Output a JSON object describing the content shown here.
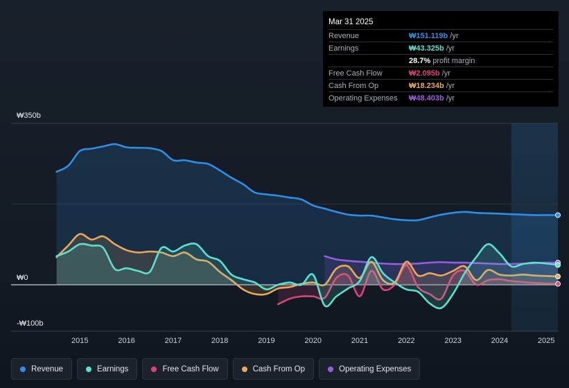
{
  "chart_data": {
    "type": "line",
    "currency_axis": {
      "ticks": [
        {
          "value": 350,
          "label": "₩350b"
        },
        {
          "value": 0,
          "label": "₩0"
        },
        {
          "value": -100,
          "label": "-₩100b"
        }
      ],
      "ylim": [
        -100,
        350
      ]
    },
    "xlim": [
      2014.0,
      2025.25
    ],
    "x_ticks": [
      "2015",
      "2016",
      "2017",
      "2018",
      "2019",
      "2020",
      "2021",
      "2022",
      "2023",
      "2024",
      "2025"
    ],
    "forecast_from": 2024.25,
    "series": [
      {
        "key": "revenue",
        "name": "Revenue",
        "color": "#2f8ee5",
        "fill": true,
        "points": [
          [
            2014.5,
            245
          ],
          [
            2014.75,
            258
          ],
          [
            2015.0,
            290
          ],
          [
            2015.25,
            295
          ],
          [
            2015.5,
            300
          ],
          [
            2015.75,
            305
          ],
          [
            2016.0,
            298
          ],
          [
            2016.25,
            297
          ],
          [
            2016.5,
            296
          ],
          [
            2016.75,
            290
          ],
          [
            2017.0,
            270
          ],
          [
            2017.25,
            270
          ],
          [
            2017.5,
            265
          ],
          [
            2017.75,
            262
          ],
          [
            2018.0,
            248
          ],
          [
            2018.25,
            232
          ],
          [
            2018.5,
            218
          ],
          [
            2018.75,
            200
          ],
          [
            2019.0,
            196
          ],
          [
            2019.25,
            193
          ],
          [
            2019.5,
            189
          ],
          [
            2019.75,
            185
          ],
          [
            2020.0,
            172
          ],
          [
            2020.25,
            165
          ],
          [
            2020.5,
            158
          ],
          [
            2020.75,
            152
          ],
          [
            2021.0,
            150
          ],
          [
            2021.25,
            150
          ],
          [
            2021.5,
            146
          ],
          [
            2021.75,
            142
          ],
          [
            2022.0,
            140
          ],
          [
            2022.25,
            140
          ],
          [
            2022.5,
            146
          ],
          [
            2022.75,
            152
          ],
          [
            2023.0,
            156
          ],
          [
            2023.25,
            158
          ],
          [
            2023.5,
            156
          ],
          [
            2023.75,
            155
          ],
          [
            2024.0,
            154
          ],
          [
            2024.25,
            153
          ],
          [
            2024.5,
            152
          ],
          [
            2024.75,
            151
          ],
          [
            2025.0,
            151
          ],
          [
            2025.25,
            151
          ]
        ]
      },
      {
        "key": "earnings",
        "name": "Earnings",
        "color": "#5fe0cf",
        "fill": true,
        "points": [
          [
            2014.5,
            62
          ],
          [
            2014.75,
            72
          ],
          [
            2015.0,
            88
          ],
          [
            2015.25,
            85
          ],
          [
            2015.5,
            80
          ],
          [
            2015.75,
            34
          ],
          [
            2016.0,
            36
          ],
          [
            2016.25,
            30
          ],
          [
            2016.5,
            28
          ],
          [
            2016.75,
            80
          ],
          [
            2017.0,
            72
          ],
          [
            2017.25,
            85
          ],
          [
            2017.5,
            88
          ],
          [
            2017.75,
            62
          ],
          [
            2018.0,
            52
          ],
          [
            2018.25,
            22
          ],
          [
            2018.5,
            12
          ],
          [
            2018.75,
            5
          ],
          [
            2019.0,
            -10
          ],
          [
            2019.25,
            0
          ],
          [
            2019.5,
            5
          ],
          [
            2019.75,
            0
          ],
          [
            2020.0,
            22
          ],
          [
            2020.25,
            -45
          ],
          [
            2020.5,
            -25
          ],
          [
            2020.75,
            -8
          ],
          [
            2021.0,
            8
          ],
          [
            2021.25,
            60
          ],
          [
            2021.5,
            25
          ],
          [
            2021.75,
            5
          ],
          [
            2022.0,
            -10
          ],
          [
            2022.25,
            -15
          ],
          [
            2022.5,
            -40
          ],
          [
            2022.75,
            -50
          ],
          [
            2023.0,
            -20
          ],
          [
            2023.25,
            25
          ],
          [
            2023.5,
            60
          ],
          [
            2023.75,
            88
          ],
          [
            2024.0,
            68
          ],
          [
            2024.25,
            40
          ],
          [
            2024.5,
            45
          ],
          [
            2024.75,
            48
          ],
          [
            2025.0,
            46
          ],
          [
            2025.25,
            43
          ]
        ]
      },
      {
        "key": "fcf",
        "name": "Free Cash Flow",
        "color": "#d8457a",
        "fill": true,
        "points": [
          [
            2019.25,
            -42
          ],
          [
            2019.5,
            -30
          ],
          [
            2019.75,
            -25
          ],
          [
            2020.0,
            -25
          ],
          [
            2020.25,
            -28
          ],
          [
            2020.5,
            15
          ],
          [
            2020.75,
            20
          ],
          [
            2021.0,
            -25
          ],
          [
            2021.25,
            30
          ],
          [
            2021.5,
            -10
          ],
          [
            2021.75,
            0
          ],
          [
            2022.0,
            42
          ],
          [
            2022.25,
            -5
          ],
          [
            2022.5,
            -20
          ],
          [
            2022.75,
            -30
          ],
          [
            2023.0,
            20
          ],
          [
            2023.25,
            30
          ],
          [
            2023.5,
            0
          ],
          [
            2023.75,
            10
          ],
          [
            2024.0,
            12
          ],
          [
            2024.25,
            8
          ],
          [
            2024.5,
            6
          ],
          [
            2024.75,
            4
          ],
          [
            2025.0,
            3
          ],
          [
            2025.25,
            2
          ]
        ]
      },
      {
        "key": "cfo",
        "name": "Cash From Op",
        "color": "#e8a95a",
        "fill": true,
        "points": [
          [
            2014.5,
            60
          ],
          [
            2014.75,
            85
          ],
          [
            2015.0,
            110
          ],
          [
            2015.25,
            98
          ],
          [
            2015.5,
            105
          ],
          [
            2015.75,
            88
          ],
          [
            2016.0,
            75
          ],
          [
            2016.25,
            70
          ],
          [
            2016.5,
            72
          ],
          [
            2016.75,
            70
          ],
          [
            2017.0,
            62
          ],
          [
            2017.25,
            70
          ],
          [
            2017.5,
            55
          ],
          [
            2017.75,
            50
          ],
          [
            2018.0,
            28
          ],
          [
            2018.25,
            10
          ],
          [
            2018.5,
            -10
          ],
          [
            2018.75,
            -20
          ],
          [
            2019.0,
            -20
          ],
          [
            2019.25,
            -8
          ],
          [
            2019.5,
            -5
          ],
          [
            2019.75,
            2
          ],
          [
            2020.0,
            5
          ],
          [
            2020.25,
            0
          ],
          [
            2020.5,
            35
          ],
          [
            2020.75,
            40
          ],
          [
            2021.0,
            15
          ],
          [
            2021.25,
            50
          ],
          [
            2021.5,
            10
          ],
          [
            2021.75,
            5
          ],
          [
            2022.0,
            50
          ],
          [
            2022.25,
            20
          ],
          [
            2022.5,
            25
          ],
          [
            2022.75,
            20
          ],
          [
            2023.0,
            30
          ],
          [
            2023.25,
            40
          ],
          [
            2023.5,
            10
          ],
          [
            2023.75,
            32
          ],
          [
            2024.0,
            22
          ],
          [
            2024.25,
            20
          ],
          [
            2024.5,
            22
          ],
          [
            2024.75,
            20
          ],
          [
            2025.0,
            19
          ],
          [
            2025.25,
            18
          ]
        ]
      },
      {
        "key": "opex",
        "name": "Operating Expenses",
        "color": "#9b5de0",
        "fill": true,
        "points": [
          [
            2020.25,
            62
          ],
          [
            2020.5,
            55
          ],
          [
            2020.75,
            52
          ],
          [
            2021.0,
            50
          ],
          [
            2021.25,
            48
          ],
          [
            2021.5,
            46
          ],
          [
            2021.75,
            45
          ],
          [
            2022.0,
            45
          ],
          [
            2022.25,
            46
          ],
          [
            2022.5,
            48
          ],
          [
            2022.75,
            49
          ],
          [
            2023.0,
            48
          ],
          [
            2023.25,
            48
          ],
          [
            2023.5,
            47
          ],
          [
            2023.75,
            46
          ],
          [
            2024.0,
            45
          ],
          [
            2024.25,
            45
          ],
          [
            2024.5,
            46
          ],
          [
            2024.75,
            47
          ],
          [
            2025.0,
            48
          ],
          [
            2025.25,
            48
          ]
        ]
      }
    ]
  },
  "tooltip": {
    "date": "Mar 31 2025",
    "rows": [
      {
        "name": "Revenue",
        "value": "₩151.119b",
        "unit": "/yr",
        "color": "#2f8ee5"
      },
      {
        "name": "Earnings",
        "value": "₩43.325b",
        "unit": "/yr",
        "color": "#5fe0cf"
      },
      {
        "name": "",
        "value": "28.7%",
        "unit": "profit margin",
        "color": "#ffffff"
      },
      {
        "name": "Free Cash Flow",
        "value": "₩2.095b",
        "unit": "/yr",
        "color": "#d8457a"
      },
      {
        "name": "Cash From Op",
        "value": "₩18.234b",
        "unit": "/yr",
        "color": "#e8a95a"
      },
      {
        "name": "Operating Expenses",
        "value": "₩48.403b",
        "unit": "/yr",
        "color": "#9b5de0"
      }
    ]
  },
  "legend": [
    {
      "label": "Revenue",
      "color": "#2f8ee5"
    },
    {
      "label": "Earnings",
      "color": "#5fe0cf"
    },
    {
      "label": "Free Cash Flow",
      "color": "#d8457a"
    },
    {
      "label": "Cash From Op",
      "color": "#e8a95a"
    },
    {
      "label": "Operating Expenses",
      "color": "#9b5de0"
    }
  ]
}
